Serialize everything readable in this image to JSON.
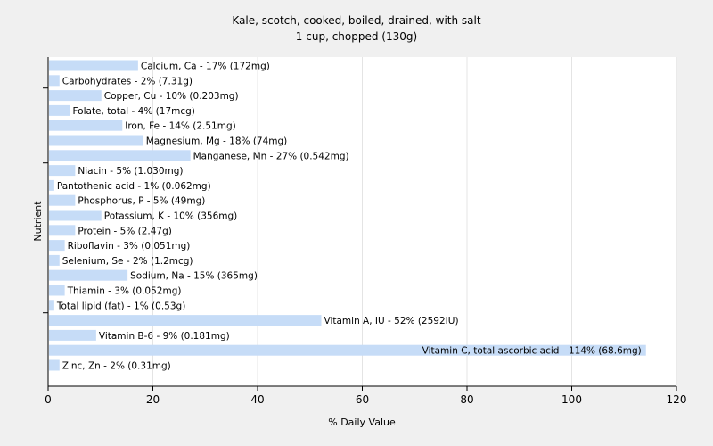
{
  "chart_data": {
    "type": "bar",
    "orientation": "horizontal",
    "title": "Kale, scotch, cooked, boiled, drained, with salt",
    "subtitle": "1 cup, chopped (130g)",
    "xlabel": "% Daily Value",
    "ylabel": "Nutrient",
    "xlim": [
      0,
      120
    ],
    "xticks": [
      0,
      20,
      40,
      60,
      80,
      100,
      120
    ],
    "grid": true,
    "bar_color": "#c6dcf7",
    "categories": [
      "Calcium, Ca",
      "Carbohydrates",
      "Copper, Cu",
      "Folate, total",
      "Iron, Fe",
      "Magnesium, Mg",
      "Manganese, Mn",
      "Niacin",
      "Pantothenic acid",
      "Phosphorus, P",
      "Potassium, K",
      "Protein",
      "Riboflavin",
      "Selenium, Se",
      "Sodium, Na",
      "Thiamin",
      "Total lipid (fat)",
      "Vitamin A, IU",
      "Vitamin B-6",
      "Vitamin C, total ascorbic acid",
      "Zinc, Zn"
    ],
    "values": [
      17,
      2,
      10,
      4,
      14,
      18,
      27,
      5,
      1,
      5,
      10,
      5,
      3,
      2,
      15,
      3,
      1,
      52,
      9,
      114,
      2
    ],
    "labels": [
      "Calcium, Ca - 17% (172mg)",
      "Carbohydrates - 2% (7.31g)",
      "Copper, Cu - 10% (0.203mg)",
      "Folate, total - 4% (17mcg)",
      "Iron, Fe - 14% (2.51mg)",
      "Magnesium, Mg - 18% (74mg)",
      "Manganese, Mn - 27% (0.542mg)",
      "Niacin - 5% (1.030mg)",
      "Pantothenic acid - 1% (0.062mg)",
      "Phosphorus, P - 5% (49mg)",
      "Potassium, K - 10% (356mg)",
      "Protein - 5% (2.47g)",
      "Riboflavin - 3% (0.051mg)",
      "Selenium, Se - 2% (1.2mcg)",
      "Sodium, Na - 15% (365mg)",
      "Thiamin - 3% (0.052mg)",
      "Total lipid (fat) - 1% (0.53g)",
      "Vitamin A, IU - 52% (2592IU)",
      "Vitamin B-6 - 9% (0.181mg)",
      "Vitamin C, total ascorbic acid - 114% (68.6mg)",
      "Zinc, Zn - 2% (0.31mg)"
    ]
  }
}
